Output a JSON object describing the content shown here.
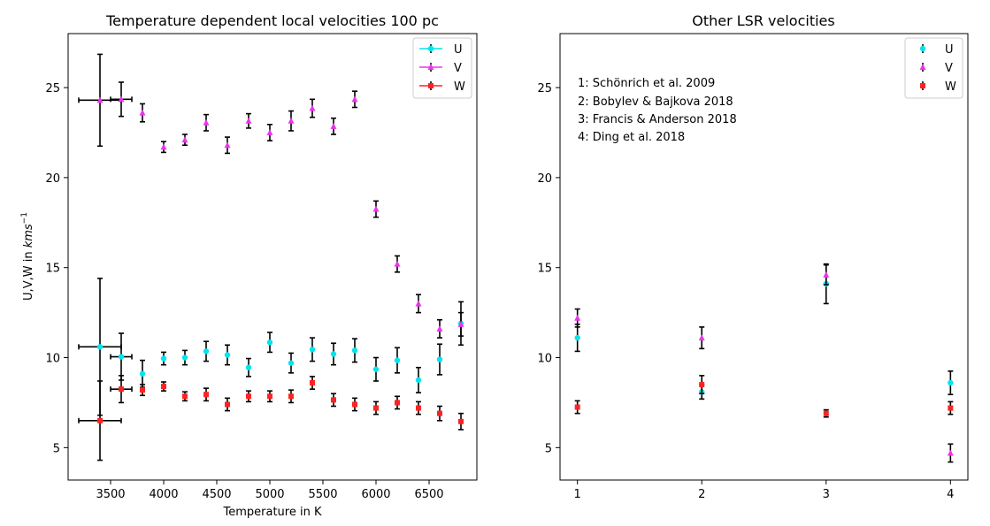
{
  "chart_data": [
    {
      "type": "scatter",
      "title": "Temperature dependent local velocities 100 pc",
      "xlabel": "Temperature in K",
      "ylabel_prefix": "U,V,W in ",
      "ylabel_unit": "kms",
      "ylabel_exp": "−1",
      "xlim": [
        3100,
        6950
      ],
      "ylim": [
        3.2,
        28.0
      ],
      "x_ticks": [
        3500,
        4000,
        4500,
        5000,
        5500,
        6000,
        6500
      ],
      "x_tick_labels": [
        "3500",
        "4000",
        "4500",
        "5000",
        "5500",
        "6000",
        "6500"
      ],
      "y_ticks": [
        5,
        10,
        15,
        20,
        25
      ],
      "y_tick_labels": [
        "5",
        "10",
        "15",
        "20",
        "25"
      ],
      "legend_position": "top-right",
      "series": [
        {
          "name": "U",
          "color": "#00e5ee",
          "marker": "circle",
          "points": [
            {
              "x": 3400,
              "y": 10.6,
              "yerr": 3.8,
              "xerr": 200
            },
            {
              "x": 3600,
              "y": 10.05,
              "yerr": 1.3,
              "xerr": 100
            },
            {
              "x": 3800,
              "y": 9.1,
              "yerr": 0.75,
              "xerr": 0
            },
            {
              "x": 4000,
              "y": 9.95,
              "yerr": 0.35,
              "xerr": 0
            },
            {
              "x": 4200,
              "y": 10.0,
              "yerr": 0.4,
              "xerr": 0
            },
            {
              "x": 4400,
              "y": 10.35,
              "yerr": 0.55,
              "xerr": 0
            },
            {
              "x": 4600,
              "y": 10.15,
              "yerr": 0.55,
              "xerr": 0
            },
            {
              "x": 4800,
              "y": 9.45,
              "yerr": 0.5,
              "xerr": 0
            },
            {
              "x": 5000,
              "y": 10.85,
              "yerr": 0.55,
              "xerr": 0
            },
            {
              "x": 5200,
              "y": 9.7,
              "yerr": 0.55,
              "xerr": 0
            },
            {
              "x": 5400,
              "y": 10.45,
              "yerr": 0.65,
              "xerr": 0
            },
            {
              "x": 5600,
              "y": 10.2,
              "yerr": 0.6,
              "xerr": 0
            },
            {
              "x": 5800,
              "y": 10.4,
              "yerr": 0.65,
              "xerr": 0
            },
            {
              "x": 6000,
              "y": 9.35,
              "yerr": 0.65,
              "xerr": 0
            },
            {
              "x": 6200,
              "y": 9.85,
              "yerr": 0.7,
              "xerr": 0
            },
            {
              "x": 6400,
              "y": 8.75,
              "yerr": 0.7,
              "xerr": 0
            },
            {
              "x": 6600,
              "y": 9.9,
              "yerr": 0.85,
              "xerr": 0
            },
            {
              "x": 6800,
              "y": 11.9,
              "yerr": 1.2,
              "xerr": 0
            }
          ]
        },
        {
          "name": "V",
          "color": "#ee33ee",
          "marker": "triangle",
          "points": [
            {
              "x": 3400,
              "y": 24.3,
              "yerr": 2.55,
              "xerr": 200
            },
            {
              "x": 3600,
              "y": 24.35,
              "yerr": 0.95,
              "xerr": 100
            },
            {
              "x": 3800,
              "y": 23.6,
              "yerr": 0.5,
              "xerr": 0
            },
            {
              "x": 4000,
              "y": 21.7,
              "yerr": 0.3,
              "xerr": 0
            },
            {
              "x": 4200,
              "y": 22.1,
              "yerr": 0.3,
              "xerr": 0
            },
            {
              "x": 4400,
              "y": 23.05,
              "yerr": 0.45,
              "xerr": 0
            },
            {
              "x": 4600,
              "y": 21.8,
              "yerr": 0.45,
              "xerr": 0
            },
            {
              "x": 4800,
              "y": 23.15,
              "yerr": 0.4,
              "xerr": 0
            },
            {
              "x": 5000,
              "y": 22.5,
              "yerr": 0.45,
              "xerr": 0
            },
            {
              "x": 5200,
              "y": 23.15,
              "yerr": 0.55,
              "xerr": 0
            },
            {
              "x": 5400,
              "y": 23.85,
              "yerr": 0.5,
              "xerr": 0
            },
            {
              "x": 5600,
              "y": 22.85,
              "yerr": 0.45,
              "xerr": 0
            },
            {
              "x": 5800,
              "y": 24.35,
              "yerr": 0.45,
              "xerr": 0
            },
            {
              "x": 6000,
              "y": 18.25,
              "yerr": 0.45,
              "xerr": 0
            },
            {
              "x": 6200,
              "y": 15.2,
              "yerr": 0.45,
              "xerr": 0
            },
            {
              "x": 6400,
              "y": 13.0,
              "yerr": 0.5,
              "xerr": 0
            },
            {
              "x": 6600,
              "y": 11.6,
              "yerr": 0.5,
              "xerr": 0
            },
            {
              "x": 6800,
              "y": 11.85,
              "yerr": 0.65,
              "xerr": 0
            }
          ]
        },
        {
          "name": "W",
          "color": "#ff2222",
          "marker": "square",
          "points": [
            {
              "x": 3400,
              "y": 6.5,
              "yerr": 2.2,
              "xerr": 200
            },
            {
              "x": 3600,
              "y": 8.25,
              "yerr": 0.75,
              "xerr": 100
            },
            {
              "x": 3800,
              "y": 8.2,
              "yerr": 0.3,
              "xerr": 0
            },
            {
              "x": 4000,
              "y": 8.4,
              "yerr": 0.25,
              "xerr": 0
            },
            {
              "x": 4200,
              "y": 7.85,
              "yerr": 0.25,
              "xerr": 0
            },
            {
              "x": 4400,
              "y": 7.95,
              "yerr": 0.35,
              "xerr": 0
            },
            {
              "x": 4600,
              "y": 7.4,
              "yerr": 0.35,
              "xerr": 0
            },
            {
              "x": 4800,
              "y": 7.85,
              "yerr": 0.3,
              "xerr": 0
            },
            {
              "x": 5000,
              "y": 7.85,
              "yerr": 0.3,
              "xerr": 0
            },
            {
              "x": 5200,
              "y": 7.85,
              "yerr": 0.35,
              "xerr": 0
            },
            {
              "x": 5400,
              "y": 8.6,
              "yerr": 0.35,
              "xerr": 0
            },
            {
              "x": 5600,
              "y": 7.65,
              "yerr": 0.35,
              "xerr": 0
            },
            {
              "x": 5800,
              "y": 7.4,
              "yerr": 0.35,
              "xerr": 0
            },
            {
              "x": 6000,
              "y": 7.2,
              "yerr": 0.35,
              "xerr": 0
            },
            {
              "x": 6200,
              "y": 7.5,
              "yerr": 0.35,
              "xerr": 0
            },
            {
              "x": 6400,
              "y": 7.2,
              "yerr": 0.35,
              "xerr": 0
            },
            {
              "x": 6600,
              "y": 6.9,
              "yerr": 0.4,
              "xerr": 0
            },
            {
              "x": 6800,
              "y": 6.45,
              "yerr": 0.45,
              "xerr": 0
            }
          ]
        }
      ]
    },
    {
      "type": "scatter",
      "title": "Other LSR velocities",
      "xlabel": "",
      "ylabel": "",
      "xlim": [
        0.86,
        4.14
      ],
      "ylim": [
        3.2,
        28.0
      ],
      "x_ticks": [
        1,
        2,
        3,
        4
      ],
      "x_tick_labels": [
        "1",
        "2",
        "3",
        "4"
      ],
      "y_ticks": [
        5,
        10,
        15,
        20,
        25
      ],
      "y_tick_labels": [
        "5",
        "10",
        "15",
        "20",
        "25"
      ],
      "legend_position": "top-right",
      "annotations": [
        "1: Schönrich et al. 2009",
        "2: Bobylev & Bajkova 2018",
        "3: Francis & Anderson 2018",
        "4: Ding et al. 2018"
      ],
      "series": [
        {
          "name": "U",
          "color": "#00e5ee",
          "marker": "circle",
          "points": [
            {
              "x": 1,
              "y": 11.1,
              "yerr": 0.75
            },
            {
              "x": 2,
              "y": 8.1,
              "yerr": 0.4
            },
            {
              "x": 3,
              "y": 14.1,
              "yerr": 1.1
            },
            {
              "x": 4,
              "y": 8.6,
              "yerr": 0.65
            }
          ]
        },
        {
          "name": "V",
          "color": "#ee33ee",
          "marker": "triangle",
          "points": [
            {
              "x": 1,
              "y": 12.2,
              "yerr": 0.5
            },
            {
              "x": 2,
              "y": 11.1,
              "yerr": 0.6
            },
            {
              "x": 3,
              "y": 14.6,
              "yerr": 0.55
            },
            {
              "x": 4,
              "y": 4.7,
              "yerr": 0.5
            }
          ]
        },
        {
          "name": "W",
          "color": "#ff2222",
          "marker": "square",
          "points": [
            {
              "x": 1,
              "y": 7.25,
              "yerr": 0.35
            },
            {
              "x": 2,
              "y": 8.5,
              "yerr": 0.5
            },
            {
              "x": 3,
              "y": 6.9,
              "yerr": 0.2
            },
            {
              "x": 4,
              "y": 7.2,
              "yerr": 0.35
            }
          ]
        }
      ]
    }
  ]
}
